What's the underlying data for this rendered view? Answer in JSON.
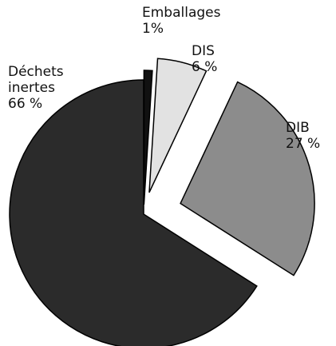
{
  "chart_data": {
    "type": "pie",
    "categories": [
      "Emballages",
      "DIS",
      "DIB",
      "Déchets inertes"
    ],
    "values": [
      1,
      6,
      27,
      66
    ],
    "value_labels": [
      "1%",
      "6 %",
      "27 %",
      "66 %"
    ],
    "colors": [
      "#111111",
      "#e2e2e2",
      "#8c8c8c",
      "#2b2b2b"
    ]
  }
}
